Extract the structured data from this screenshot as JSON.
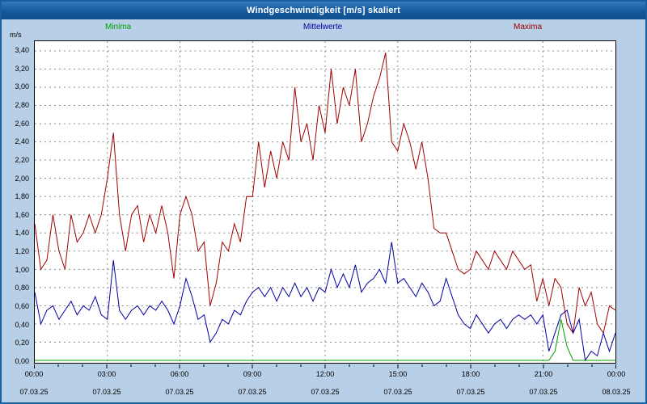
{
  "window": {
    "title": "Windgeschwindigkeit [m/s] skaliert"
  },
  "axes": {
    "unit_label": "m/s",
    "y_tick_labels": [
      "0,00",
      "0,20",
      "0,40",
      "0,60",
      "0,80",
      "1,00",
      "1,20",
      "1,40",
      "1,60",
      "1,80",
      "2,00",
      "2,20",
      "2,40",
      "2,60",
      "2,80",
      "3,00",
      "3,20",
      "3,40"
    ],
    "x_tick_labels": [
      "00:00",
      "03:00",
      "06:00",
      "09:00",
      "12:00",
      "15:00",
      "18:00",
      "21:00",
      "00:00"
    ],
    "x_date_labels": [
      "07.03.25",
      "07.03.25",
      "07.03.25",
      "07.03.25",
      "07.03.25",
      "07.03.25",
      "07.03.25",
      "07.03.25",
      "08.03.25"
    ]
  },
  "chart_data": {
    "type": "line",
    "title": "Windgeschwindigkeit [m/s] skaliert",
    "ylabel": "m/s",
    "ylim": [
      0,
      3.45
    ],
    "y_tick_step": 0.2,
    "x_tick_labels": [
      "00:00",
      "03:00",
      "06:00",
      "09:00",
      "12:00",
      "15:00",
      "18:00",
      "21:00",
      "00:00"
    ],
    "x_date_labels": [
      "07.03.25",
      "07.03.25",
      "07.03.25",
      "07.03.25",
      "07.03.25",
      "07.03.25",
      "07.03.25",
      "07.03.25",
      "08.03.25"
    ],
    "sample_interval_minutes": 15,
    "grid": "dashed-both-axes",
    "legend_position": "top",
    "series": [
      {
        "name": "Minima",
        "color": "#00a000",
        "values": [
          0,
          0,
          0,
          0,
          0,
          0,
          0,
          0,
          0,
          0,
          0,
          0,
          0,
          0,
          0,
          0,
          0,
          0,
          0,
          0,
          0,
          0,
          0,
          0,
          0,
          0,
          0,
          0,
          0,
          0,
          0,
          0,
          0,
          0,
          0,
          0,
          0,
          0,
          0,
          0,
          0,
          0,
          0,
          0,
          0,
          0,
          0,
          0,
          0,
          0,
          0,
          0,
          0,
          0,
          0,
          0,
          0,
          0,
          0,
          0,
          0,
          0,
          0,
          0,
          0,
          0,
          0,
          0,
          0,
          0,
          0,
          0,
          0,
          0,
          0,
          0,
          0,
          0,
          0,
          0,
          0,
          0,
          0,
          0,
          0,
          0,
          0.1,
          0.45,
          0.15,
          0,
          0,
          0,
          0,
          0,
          0,
          0,
          0
        ]
      },
      {
        "name": "Mittelwerte",
        "color": "#0000a0",
        "values": [
          0.75,
          0.4,
          0.55,
          0.6,
          0.45,
          0.55,
          0.65,
          0.5,
          0.6,
          0.55,
          0.7,
          0.5,
          0.45,
          1.1,
          0.55,
          0.45,
          0.55,
          0.6,
          0.5,
          0.6,
          0.55,
          0.65,
          0.55,
          0.4,
          0.6,
          0.9,
          0.7,
          0.45,
          0.5,
          0.2,
          0.3,
          0.45,
          0.4,
          0.55,
          0.5,
          0.65,
          0.75,
          0.8,
          0.7,
          0.8,
          0.65,
          0.8,
          0.7,
          0.85,
          0.7,
          0.8,
          0.65,
          0.8,
          0.75,
          1.0,
          0.8,
          0.95,
          0.8,
          1.05,
          0.75,
          0.85,
          0.9,
          1.0,
          0.85,
          1.3,
          0.85,
          0.9,
          0.8,
          0.7,
          0.85,
          0.75,
          0.6,
          0.65,
          0.9,
          0.7,
          0.5,
          0.4,
          0.35,
          0.5,
          0.4,
          0.3,
          0.4,
          0.45,
          0.35,
          0.45,
          0.5,
          0.45,
          0.5,
          0.4,
          0.5,
          0.1,
          0.3,
          0.5,
          0.55,
          0.3,
          0.45,
          0.0,
          0.1,
          0.05,
          0.3,
          0.1,
          0.3
        ]
      },
      {
        "name": "Maxima",
        "color": "#a00000",
        "values": [
          1.5,
          1.0,
          1.1,
          1.6,
          1.2,
          1.0,
          1.6,
          1.3,
          1.4,
          1.6,
          1.4,
          1.6,
          2.0,
          2.5,
          1.6,
          1.2,
          1.6,
          1.7,
          1.3,
          1.6,
          1.4,
          1.7,
          1.4,
          0.9,
          1.6,
          1.8,
          1.6,
          1.2,
          1.3,
          0.6,
          0.85,
          1.3,
          1.2,
          1.5,
          1.3,
          1.8,
          1.8,
          2.4,
          1.9,
          2.3,
          2.0,
          2.4,
          2.2,
          3.0,
          2.4,
          2.6,
          2.2,
          2.8,
          2.5,
          3.2,
          2.6,
          3.0,
          2.8,
          3.2,
          2.4,
          2.6,
          2.9,
          3.1,
          3.38,
          2.4,
          2.3,
          2.6,
          2.4,
          2.1,
          2.4,
          2.0,
          1.45,
          1.4,
          1.4,
          1.2,
          1.0,
          0.95,
          1.0,
          1.2,
          1.1,
          1.0,
          1.2,
          1.1,
          1.0,
          1.2,
          1.1,
          1.0,
          1.05,
          0.65,
          0.9,
          0.6,
          0.9,
          0.8,
          0.4,
          0.3,
          0.8,
          0.6,
          0.75,
          0.4,
          0.3,
          0.6,
          0.55
        ]
      }
    ]
  }
}
